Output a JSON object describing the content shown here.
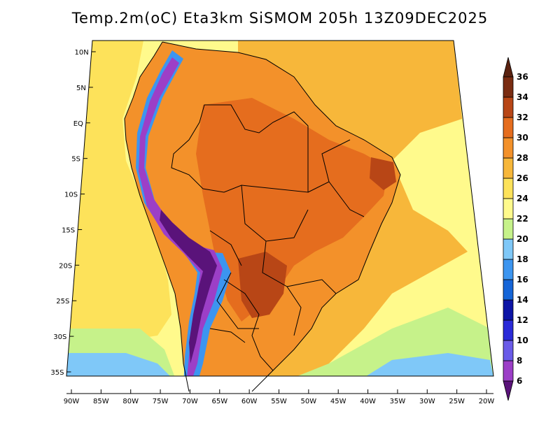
{
  "title": "Temp.2m(oC) Eta3km SiSMOM 205h 13Z09DEC2025",
  "map": {
    "lat_ticks": [
      {
        "lat": 10,
        "label": "10N"
      },
      {
        "lat": 5,
        "label": "5N"
      },
      {
        "lat": 0,
        "label": "EQ"
      },
      {
        "lat": -5,
        "label": "5S"
      },
      {
        "lat": -10,
        "label": "10S"
      },
      {
        "lat": -15,
        "label": "15S"
      },
      {
        "lat": -20,
        "label": "20S"
      },
      {
        "lat": -25,
        "label": "25S"
      },
      {
        "lat": -30,
        "label": "30S"
      },
      {
        "lat": -35,
        "label": "35S"
      }
    ],
    "lon_ticks": [
      {
        "lon": -90,
        "label": "90W"
      },
      {
        "lon": -85,
        "label": "85W"
      },
      {
        "lon": -80,
        "label": "80W"
      },
      {
        "lon": -75,
        "label": "75W"
      },
      {
        "lon": -70,
        "label": "70W"
      },
      {
        "lon": -65,
        "label": "65W"
      },
      {
        "lon": -60,
        "label": "60W"
      },
      {
        "lon": -55,
        "label": "55W"
      },
      {
        "lon": -50,
        "label": "50W"
      },
      {
        "lon": -45,
        "label": "45W"
      },
      {
        "lon": -40,
        "label": "40W"
      },
      {
        "lon": -35,
        "label": "35W"
      },
      {
        "lon": -30,
        "label": "30W"
      },
      {
        "lon": -25,
        "label": "25W"
      },
      {
        "lon": -20,
        "label": "20W"
      }
    ]
  },
  "colorbar": {
    "levels": [
      "6",
      "8",
      "10",
      "12",
      "14",
      "16",
      "18",
      "20",
      "22",
      "24",
      "26",
      "28",
      "30",
      "32",
      "34",
      "36"
    ],
    "colors": [
      "#7b1fa2",
      "#9c3fc7",
      "#6a5be8",
      "#2a2ad8",
      "#0c14a6",
      "#1565d8",
      "#3c95f0",
      "#7fc8f8",
      "#c6f28a",
      "#fffa8c",
      "#fde25a",
      "#f7b73a",
      "#f3912a",
      "#e56d1e",
      "#b84616",
      "#7a2c12"
    ],
    "top_color": "#5a2210",
    "bottom_color": "#5a137a"
  },
  "field_colors": {
    "ocean_warm": "#f7b73a",
    "ocean_mid": "#fde25a",
    "ocean_cool": "#fffa8c",
    "ocean_cold": "#c6f28a",
    "ocean_coldest": "#7fc8f8",
    "land_hot": "#f3912a",
    "land_hotter": "#e56d1e",
    "land_hottest": "#b84616",
    "andes_cool": "#3c95f0",
    "andes_cold": "#9c3fc7",
    "andes_coldest": "#5a137a"
  }
}
